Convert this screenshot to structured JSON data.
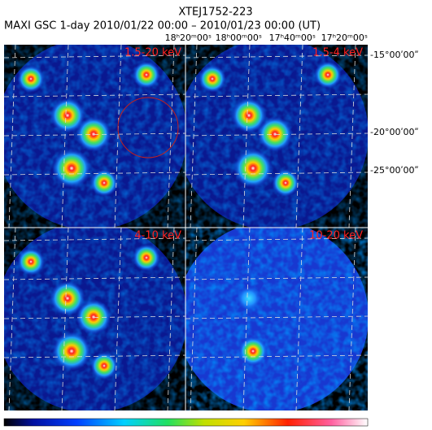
{
  "header": {
    "title": "XTEJ1752-223",
    "subtitle": "MAXI GSC 1-day 2010/01/22 00:00 – 2010/01/23 00:00 (UT)"
  },
  "ra_labels": [
    "18ʰ20ᵐ00ˢ",
    "18ʰ00ᵐ00ˢ",
    "17ʰ40ᵐ00ˢ",
    "17ʰ20ᵐ00ˢ"
  ],
  "dec_labels": [
    "-15°00ʹ00ʺ",
    "-20°00ʹ00ʺ",
    "-25°00ʹ00ʺ"
  ],
  "panels": [
    {
      "label": "1.5-20 keV"
    },
    {
      "label": "1.5-4 keV"
    },
    {
      "label": "4-10 keV"
    },
    {
      "label": "10-20 keV"
    }
  ]
}
